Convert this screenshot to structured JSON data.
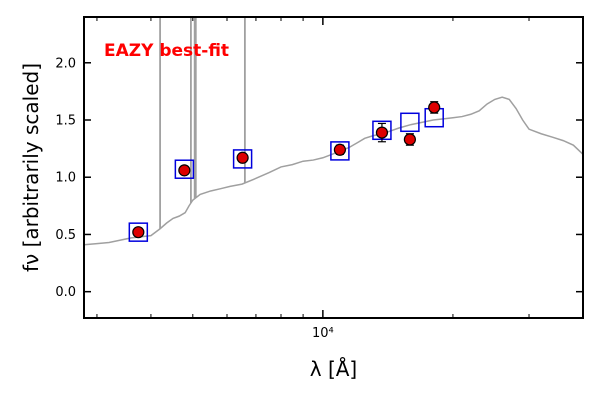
{
  "chart_data": {
    "type": "scatter",
    "title": "",
    "xlabel": "λ [Å]",
    "ylabel": "fν [arbitrarily scaled]",
    "x_scale": "log",
    "xlim": [
      2800,
      40000
    ],
    "ylim": [
      -0.23,
      2.4
    ],
    "grid": false,
    "x_ticks": [
      {
        "value": 10000,
        "label": "10⁴"
      }
    ],
    "y_ticks": [
      0.0,
      0.5,
      1.0,
      1.5,
      2.0
    ],
    "y_tick_labels": [
      "0.0",
      "0.5",
      "1.0",
      "1.5",
      "2.0"
    ],
    "annotation": {
      "text": "EAZY best-fit",
      "color": "#ff0000"
    },
    "colors": {
      "template": "#a0a0a0",
      "model_box": "#0000dd",
      "observed": "#dd0000"
    },
    "series": [
      {
        "kind": "template",
        "line": [
          [
            2800,
            0.41
          ],
          [
            3000,
            0.42
          ],
          [
            3200,
            0.43
          ],
          [
            3400,
            0.45
          ],
          [
            3600,
            0.47
          ],
          [
            3800,
            0.48
          ],
          [
            4000,
            0.49
          ],
          [
            4200,
            0.55
          ],
          [
            4350,
            0.6
          ],
          [
            4500,
            0.64
          ],
          [
            4650,
            0.66
          ],
          [
            4800,
            0.69
          ],
          [
            4900,
            0.75
          ],
          [
            5000,
            0.8
          ],
          [
            5200,
            0.85
          ],
          [
            5500,
            0.88
          ],
          [
            5800,
            0.9
          ],
          [
            6100,
            0.92
          ],
          [
            6500,
            0.94
          ],
          [
            7000,
            0.99
          ],
          [
            7500,
            1.04
          ],
          [
            8000,
            1.09
          ],
          [
            8500,
            1.11
          ],
          [
            9000,
            1.14
          ],
          [
            9500,
            1.15
          ],
          [
            10000,
            1.17
          ],
          [
            10500,
            1.2
          ],
          [
            11000,
            1.23
          ],
          [
            11500,
            1.26
          ],
          [
            12000,
            1.3
          ],
          [
            12500,
            1.34
          ],
          [
            13000,
            1.36
          ],
          [
            14000,
            1.39
          ],
          [
            15000,
            1.43
          ],
          [
            16000,
            1.46
          ],
          [
            17000,
            1.48
          ],
          [
            18000,
            1.5
          ],
          [
            19000,
            1.51
          ],
          [
            20000,
            1.52
          ],
          [
            21000,
            1.53
          ],
          [
            22000,
            1.55
          ],
          [
            23000,
            1.58
          ],
          [
            24000,
            1.64
          ],
          [
            25000,
            1.68
          ],
          [
            26000,
            1.7
          ],
          [
            27000,
            1.68
          ],
          [
            28000,
            1.6
          ],
          [
            29000,
            1.5
          ],
          [
            30000,
            1.42
          ],
          [
            32000,
            1.38
          ],
          [
            34000,
            1.35
          ],
          [
            36000,
            1.32
          ],
          [
            38000,
            1.28
          ],
          [
            40000,
            1.2
          ]
        ],
        "emission_lines": [
          {
            "x": 4200,
            "top": 2.4
          },
          {
            "x": 4950,
            "top": 2.4
          },
          {
            "x": 5050,
            "top": 2.4
          },
          {
            "x": 5080,
            "top": 2.4
          },
          {
            "x": 6600,
            "top": 2.4
          }
        ]
      },
      {
        "kind": "model",
        "x": [
          3740,
          4780,
          6520,
          10950,
          13700,
          15900,
          18100
        ],
        "y": [
          0.52,
          1.07,
          1.16,
          1.23,
          1.41,
          1.48,
          1.52
        ]
      },
      {
        "kind": "observed",
        "x": [
          3740,
          4780,
          6520,
          10950,
          13700,
          15900,
          18100
        ],
        "y": [
          0.52,
          1.06,
          1.17,
          1.24,
          1.39,
          1.33,
          1.61
        ],
        "yerr": [
          0.02,
          0.03,
          0.03,
          0.04,
          0.08,
          0.05,
          0.05
        ]
      }
    ]
  }
}
